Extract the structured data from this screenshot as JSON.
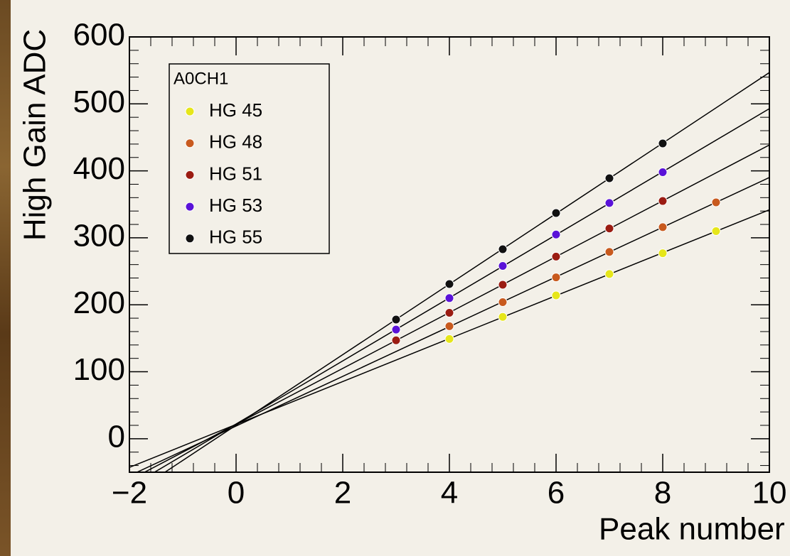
{
  "chart_data": {
    "type": "scatter",
    "x_label": "Peak number",
    "y_label": "High Gain ADC",
    "legend_title": "A0CH1",
    "legend": "top-left",
    "fit": "linear",
    "xlim": [
      -2,
      10
    ],
    "ylim": [
      -50,
      600
    ],
    "xticks": [
      {
        "value": -2,
        "label": "−2"
      },
      0,
      2,
      4,
      6,
      8,
      10
    ],
    "yticks": [
      0,
      100,
      200,
      300,
      400,
      500,
      600
    ],
    "series": [
      {
        "name": "HG 45",
        "color": "#e6e61a",
        "x": [
          4,
          5,
          6,
          7,
          8,
          9
        ],
        "values": [
          149,
          182,
          214,
          246,
          277,
          310
        ]
      },
      {
        "name": "HG 48",
        "color": "#c85a1e",
        "x": [
          4,
          5,
          6,
          7,
          8,
          9
        ],
        "values": [
          168,
          204,
          241,
          279,
          316,
          353
        ]
      },
      {
        "name": "HG 51",
        "color": "#9b1c12",
        "x": [
          3,
          4,
          5,
          6,
          7,
          8
        ],
        "values": [
          147,
          188,
          230,
          272,
          314,
          355
        ]
      },
      {
        "name": "HG 53",
        "color": "#5a12d8",
        "x": [
          3,
          4,
          5,
          6,
          7,
          8
        ],
        "values": [
          163,
          210,
          258,
          305,
          352,
          398
        ]
      },
      {
        "name": "HG 55",
        "color": "#111111",
        "x": [
          3,
          4,
          5,
          6,
          7,
          8
        ],
        "values": [
          178,
          231,
          283,
          337,
          389,
          441
        ]
      }
    ]
  }
}
